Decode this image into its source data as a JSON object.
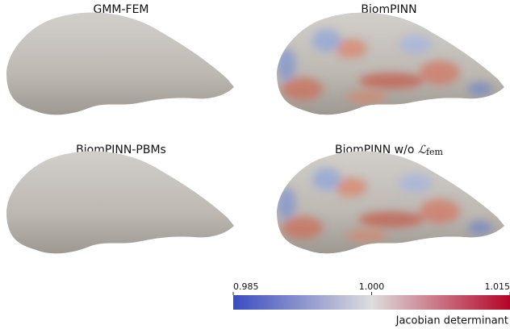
{
  "panels": [
    {
      "title": "GMM-FEM"
    },
    {
      "title": "BiomPINN"
    },
    {
      "title": "BiomPINN-PBMs"
    },
    {
      "title": "BiomPINN w/o",
      "title_math": "ℒ",
      "title_sub": "fem"
    }
  ],
  "colorbar": {
    "label": "Jacobian determinant",
    "lim": [
      0.985,
      1.015
    ],
    "ticks": [
      0.985,
      {
        "value": 1,
        "label": "1.000"
      },
      1.015
    ],
    "colors": [
      "#3b4cc0",
      "#dddddd",
      "#b40426"
    ]
  }
}
